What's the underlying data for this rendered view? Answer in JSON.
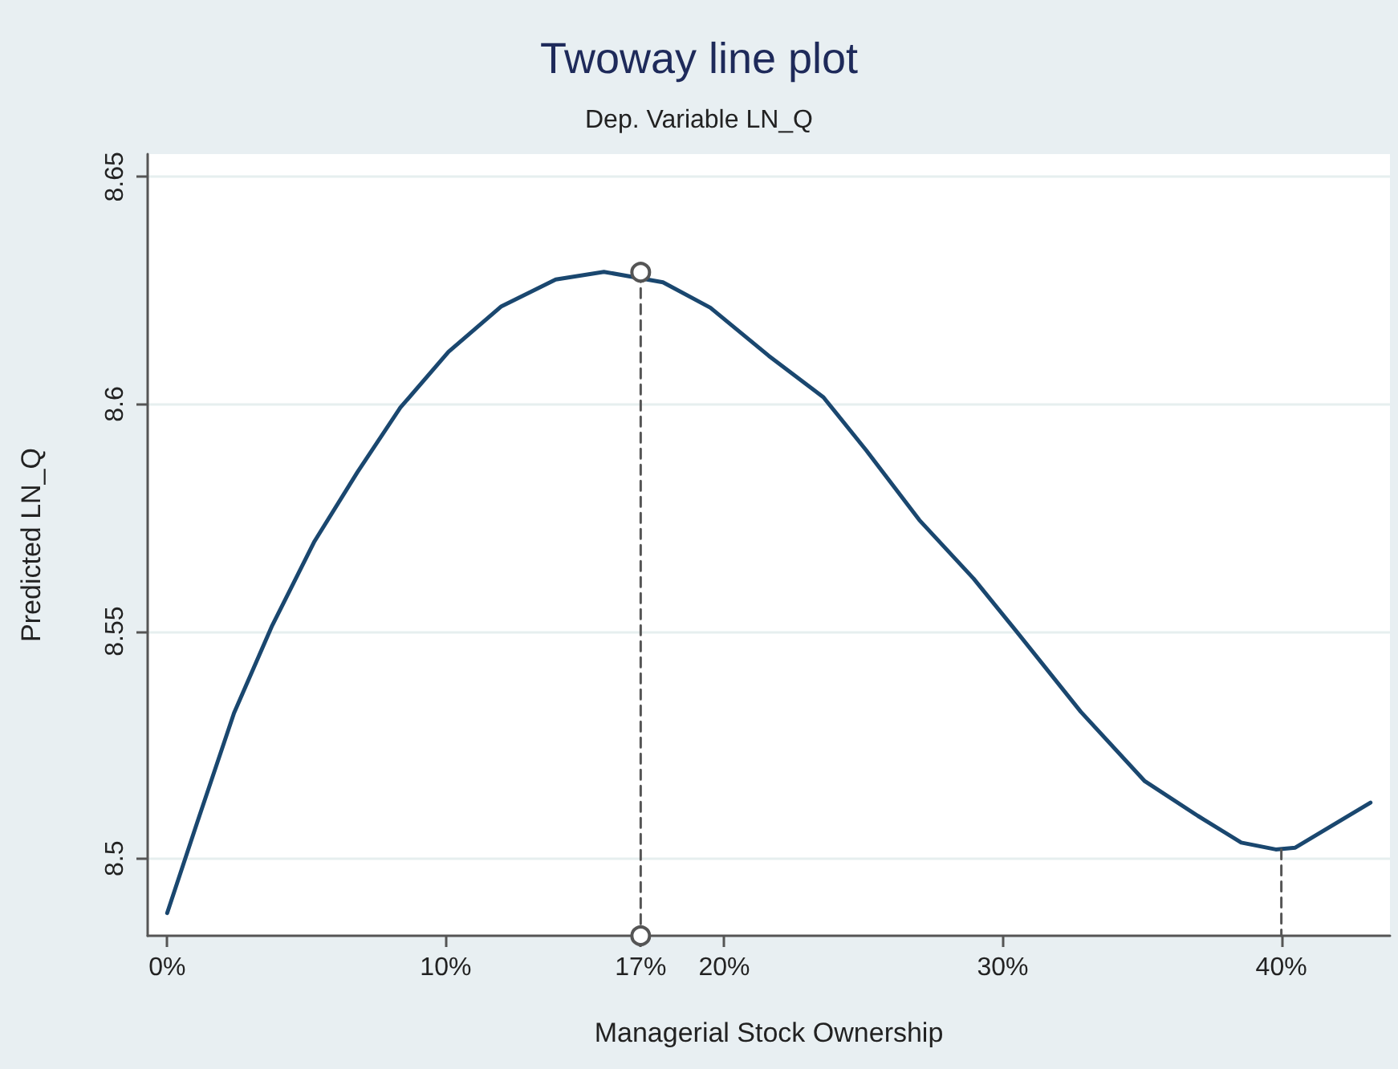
{
  "chart_data": {
    "type": "line",
    "title": "Twoway line plot",
    "subtitle": "Dep. Variable LN_Q",
    "xlabel": "Managerial Stock Ownership",
    "ylabel": "Predicted LN_Q",
    "xlim": [
      -0.7,
      43.9
    ],
    "ylim": [
      8.483,
      8.655
    ],
    "xticks": [
      {
        "value": 0,
        "label": "0%"
      },
      {
        "value": 10,
        "label": "10%"
      },
      {
        "value": 17,
        "label": "17%"
      },
      {
        "value": 20,
        "label": "20%"
      },
      {
        "value": 30,
        "label": "30%"
      },
      {
        "value": 40,
        "label": "40%"
      }
    ],
    "yticks": [
      8.5,
      8.55,
      8.6,
      8.65
    ],
    "grid": "y",
    "marker": "none",
    "line_style": "solid",
    "series": [
      {
        "color": "#1a476f",
        "x": [
          0,
          1.06,
          2.4,
          3.75,
          5.29,
          6.83,
          8.37,
          10.1,
          12.0,
          13.95,
          15.68,
          17.8,
          19.5,
          21.6,
          23.56,
          25.1,
          27.0,
          28.95,
          30.5,
          32.8,
          35.1,
          37.0,
          38.56,
          39.8,
          40.5,
          43.2
        ],
        "values": [
          8.488,
          8.5076,
          8.532,
          8.551,
          8.5698,
          8.585,
          8.5992,
          8.6115,
          8.6215,
          8.6274,
          8.6291,
          8.6268,
          8.6212,
          8.6106,
          8.6015,
          8.5898,
          8.5745,
          8.5616,
          8.5499,
          8.5323,
          8.517,
          8.5094,
          8.5035,
          8.502,
          8.5024,
          8.5123
        ]
      },
      {
        "color": "#555555",
        "x": [
          17,
          17
        ],
        "values": [
          8.629,
          8.483
        ],
        "line_style": "dashed",
        "marker": "circle"
      },
      {
        "color": "#555555",
        "x": [
          40,
          40
        ],
        "values": [
          8.502,
          8.483
        ],
        "line_style": "dashed",
        "marker": "none"
      }
    ]
  }
}
